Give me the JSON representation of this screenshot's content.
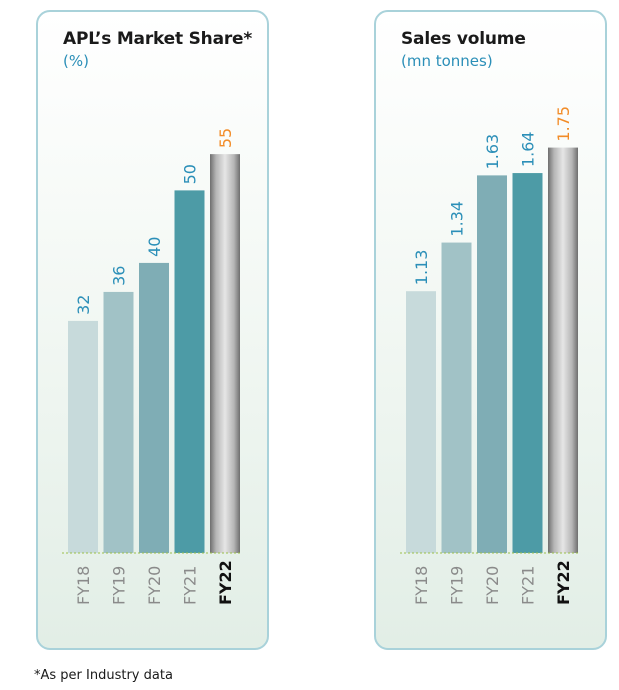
{
  "panels": [
    {
      "title": "APL’s Market Share*",
      "subtitle": "(%)"
    },
    {
      "title": "Sales volume",
      "subtitle": "(mn tonnes)"
    }
  ],
  "footnote": "*As per Industry data",
  "colors": {
    "bars": [
      "#c7dadb",
      "#a1c2c6",
      "#7fadb5",
      "#4d9ba6"
    ],
    "highlight_bar": "#9c9c9c",
    "value_label": "#2b8fb8",
    "highlight_label": "#f28c28",
    "category_label": "#8a8a8a",
    "highlight_category": "#111111",
    "baseline": "#9bc04a"
  },
  "chart_data": [
    {
      "type": "bar",
      "categories": [
        "FY18",
        "FY19",
        "FY20",
        "FY21",
        "FY22"
      ],
      "values": [
        32,
        36,
        40,
        50,
        55
      ],
      "labels": [
        "32",
        "36",
        "40",
        "50",
        "55"
      ],
      "highlight": "FY22",
      "title": "APL’s Market Share*",
      "ylabel": "(%)",
      "ylim": [
        0,
        57.5
      ]
    },
    {
      "type": "bar",
      "categories": [
        "FY18",
        "FY19",
        "FY20",
        "FY21",
        "FY22"
      ],
      "values": [
        1.13,
        1.34,
        1.63,
        1.64,
        1.75
      ],
      "labels": [
        "1.13",
        "1.34",
        "1.63",
        "1.64",
        "1.75"
      ],
      "highlight": "FY22",
      "title": "Sales volume",
      "ylabel": "(mn tonnes)",
      "ylim": [
        0,
        1.8
      ]
    }
  ]
}
